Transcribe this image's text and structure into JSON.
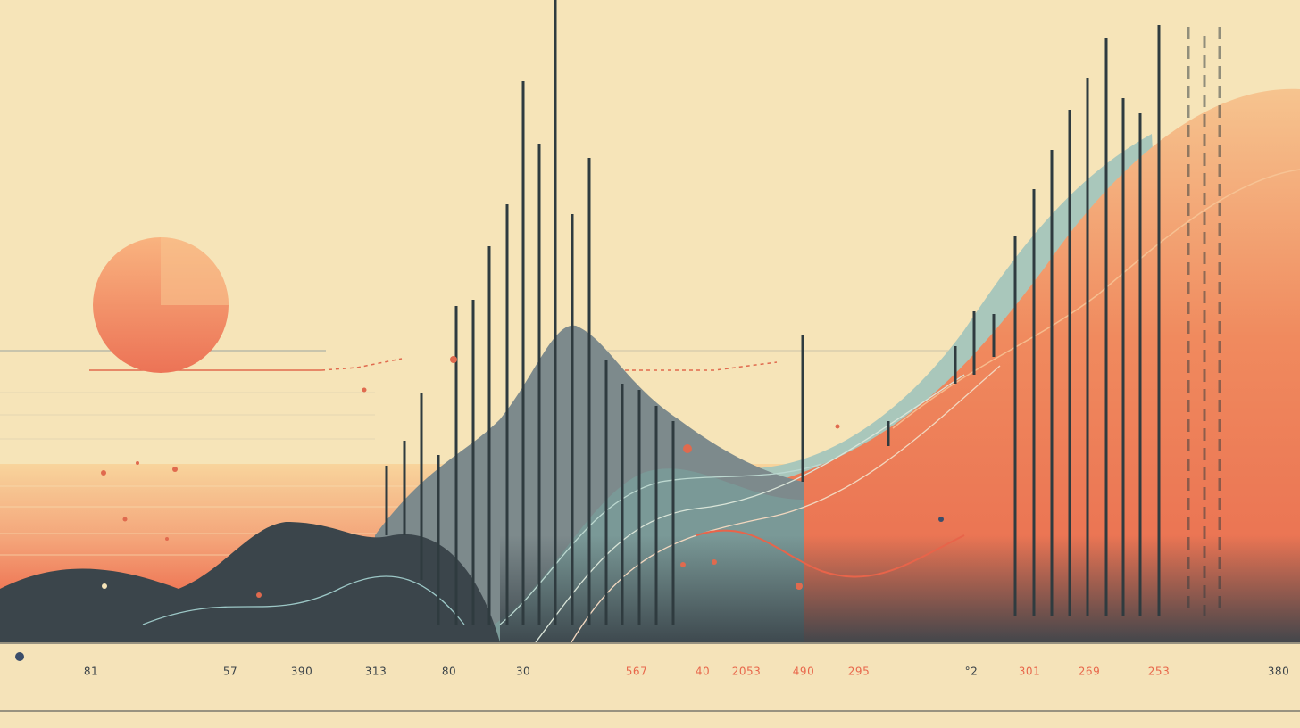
{
  "labels": [
    "81",
    "57",
    "390",
    "313",
    "80",
    "30",
    "567",
    "40",
    "2053",
    "490",
    "295",
    "°2",
    "301",
    "269",
    "253",
    "380"
  ]
}
